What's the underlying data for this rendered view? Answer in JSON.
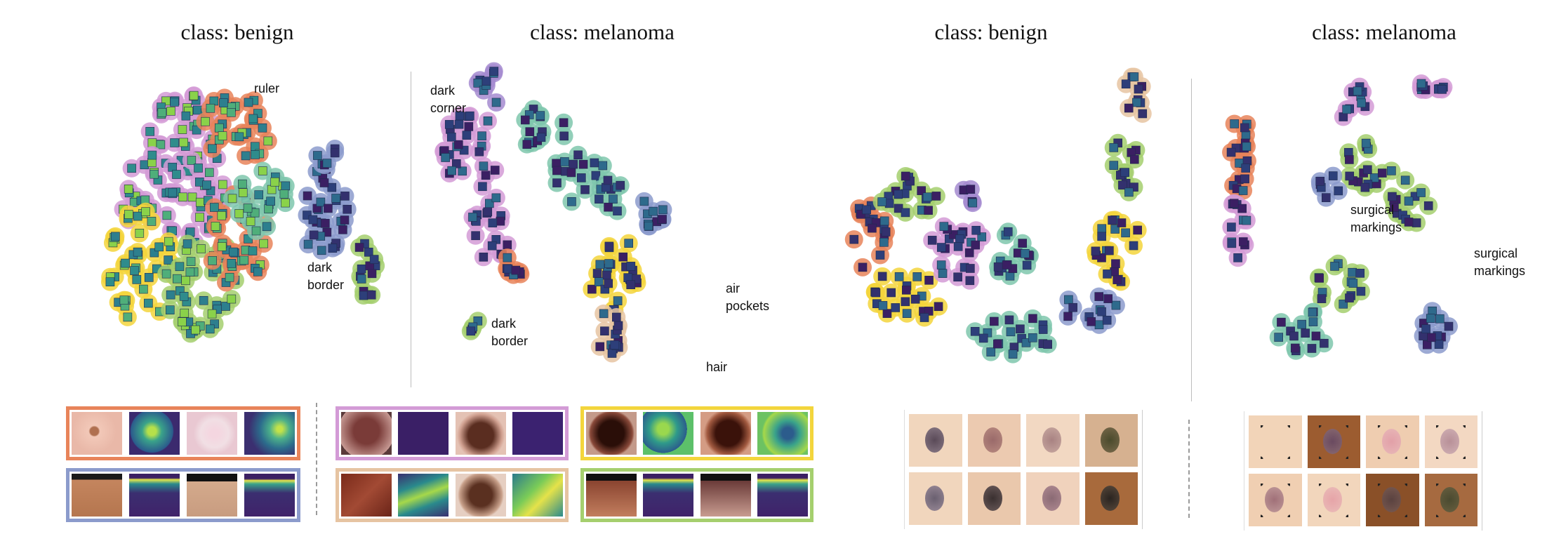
{
  "titles": [
    "class: benign",
    "class: melanoma",
    "class: benign",
    "class: melanoma"
  ],
  "labels": {
    "ruler": "ruler",
    "dark_border_1": "dark\nborder",
    "dark_corner": "dark\ncorner",
    "dark_border_2": "dark\nborder",
    "air_pockets": "air\npockets",
    "hair": "hair",
    "surgical_markings_1": "surgical\nmarkings",
    "surgical_markings_2": "surgical\nmarkings"
  },
  "colors": {
    "orange": "#e8845a",
    "pink": "#d39bd6",
    "blue": "#8c9bcc",
    "green": "#a5cf6e",
    "yellow": "#f3d53c",
    "peach": "#e6c4a2",
    "teal": "#7fc7ad",
    "purple": "#a58bd0",
    "viridis_dark": "#3b1f63",
    "viridis_mid": "#2f8c8c",
    "viridis_bright": "#8ad24a",
    "skin_light": "#f2d4b8",
    "skin_dark": "#a56a3c"
  }
}
